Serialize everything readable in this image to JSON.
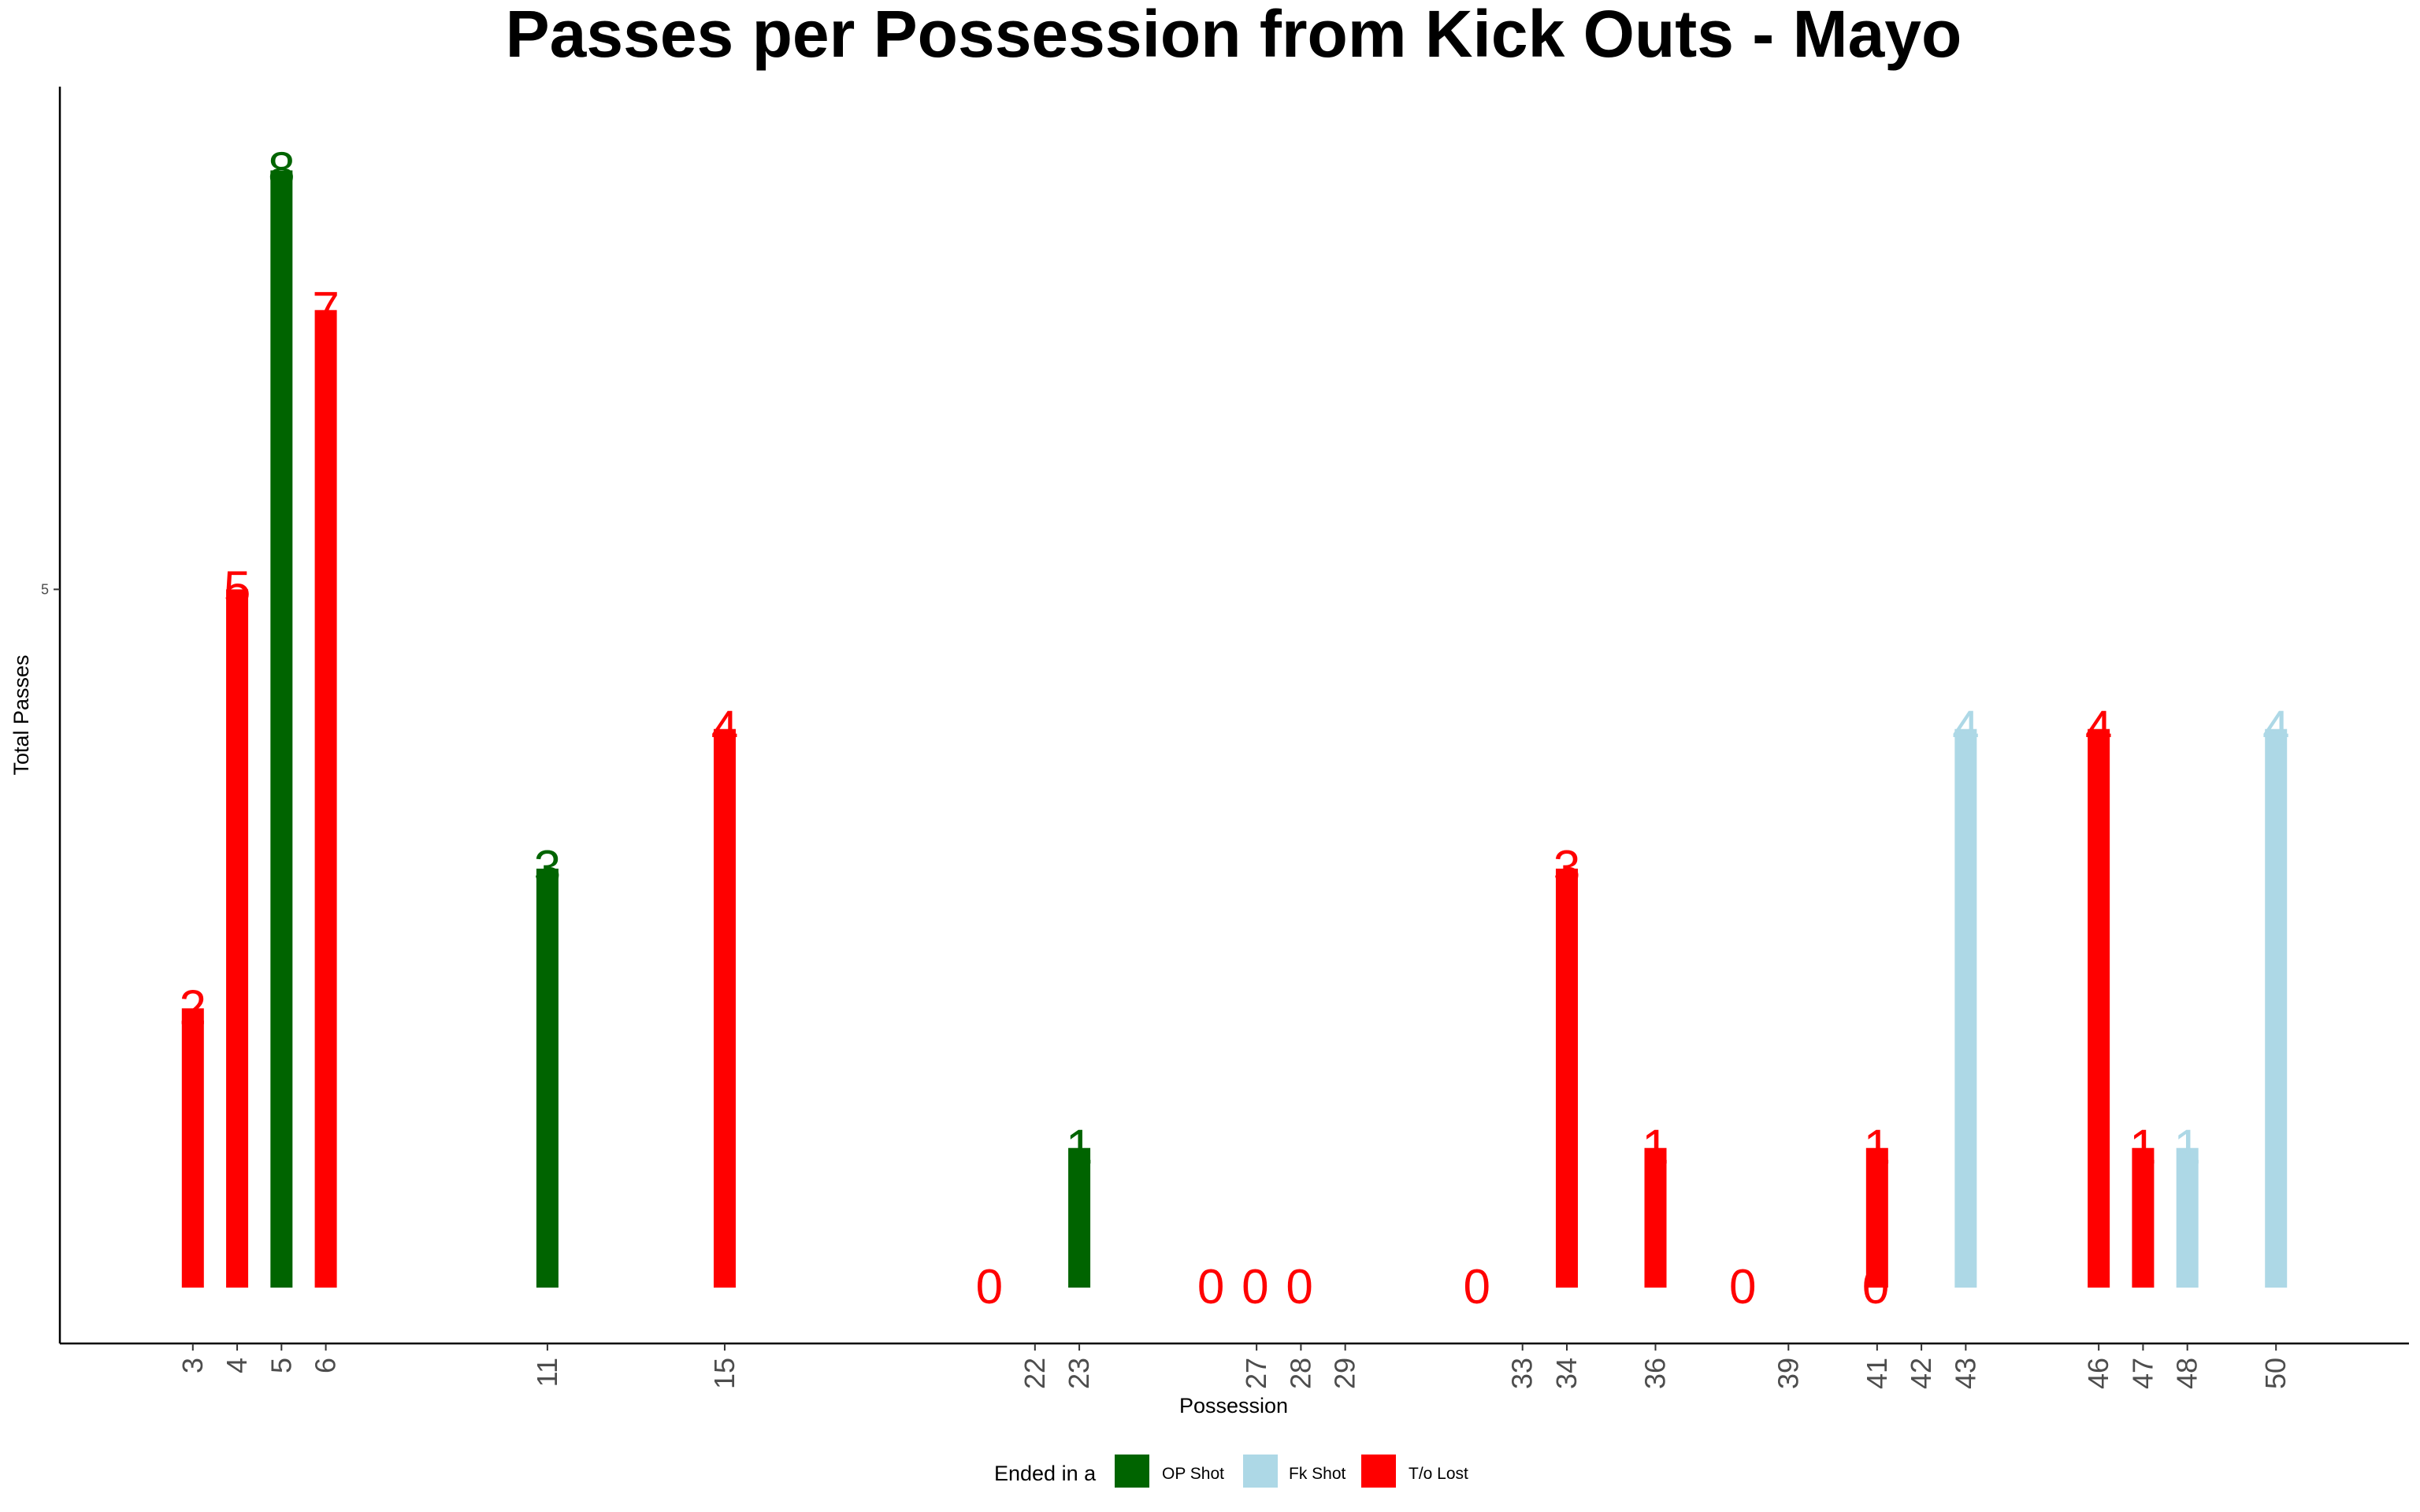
{
  "chart_data": {
    "type": "bar",
    "title": "Passes per Possession from Kick Outs - Mayo",
    "xlabel": "Possession",
    "ylabel": "Total Passes",
    "yticks": [
      5
    ],
    "xlim": [
      0,
      53
    ],
    "ylim": [
      -0.4,
      8.6
    ],
    "grid": false,
    "legend": {
      "title": "Ended in a",
      "position": "bottom",
      "entries": [
        {
          "name": "OP Shot",
          "color": "#006400"
        },
        {
          "name": "Fk Shot",
          "color": "#ADD8E6"
        },
        {
          "name": "T/o Lost",
          "color": "#FF0000"
        }
      ]
    },
    "points": [
      {
        "possession": 3,
        "passes": 2,
        "outcome": "T/o Lost"
      },
      {
        "possession": 4,
        "passes": 5,
        "outcome": "T/o Lost"
      },
      {
        "possession": 5,
        "passes": 8,
        "outcome": "OP Shot"
      },
      {
        "possession": 6,
        "passes": 7,
        "outcome": "T/o Lost"
      },
      {
        "possession": 11,
        "passes": 3,
        "outcome": "OP Shot"
      },
      {
        "possession": 15,
        "passes": 4,
        "outcome": "T/o Lost"
      },
      {
        "possession": 22,
        "passes": 0,
        "outcome": "T/o Lost"
      },
      {
        "possession": 23,
        "passes": 1,
        "outcome": "OP Shot"
      },
      {
        "possession": 27,
        "passes": 0,
        "outcome": "T/o Lost"
      },
      {
        "possession": 28,
        "passes": 0,
        "outcome": "T/o Lost"
      },
      {
        "possession": 29,
        "passes": 0,
        "outcome": "T/o Lost"
      },
      {
        "possession": 33,
        "passes": 0,
        "outcome": "T/o Lost"
      },
      {
        "possession": 34,
        "passes": 3,
        "outcome": "T/o Lost"
      },
      {
        "possession": 36,
        "passes": 1,
        "outcome": "T/o Lost"
      },
      {
        "possession": 39,
        "passes": 0,
        "outcome": "T/o Lost"
      },
      {
        "possession": 41,
        "passes": 1,
        "outcome": "T/o Lost"
      },
      {
        "possession": 42,
        "passes": 0,
        "outcome": "T/o Lost"
      },
      {
        "possession": 43,
        "passes": 4,
        "outcome": "Fk Shot"
      },
      {
        "possession": 46,
        "passes": 4,
        "outcome": "T/o Lost"
      },
      {
        "possession": 47,
        "passes": 1,
        "outcome": "T/o Lost"
      },
      {
        "possession": 48,
        "passes": 1,
        "outcome": "Fk Shot"
      },
      {
        "possession": 50,
        "passes": 4,
        "outcome": "Fk Shot"
      }
    ]
  }
}
